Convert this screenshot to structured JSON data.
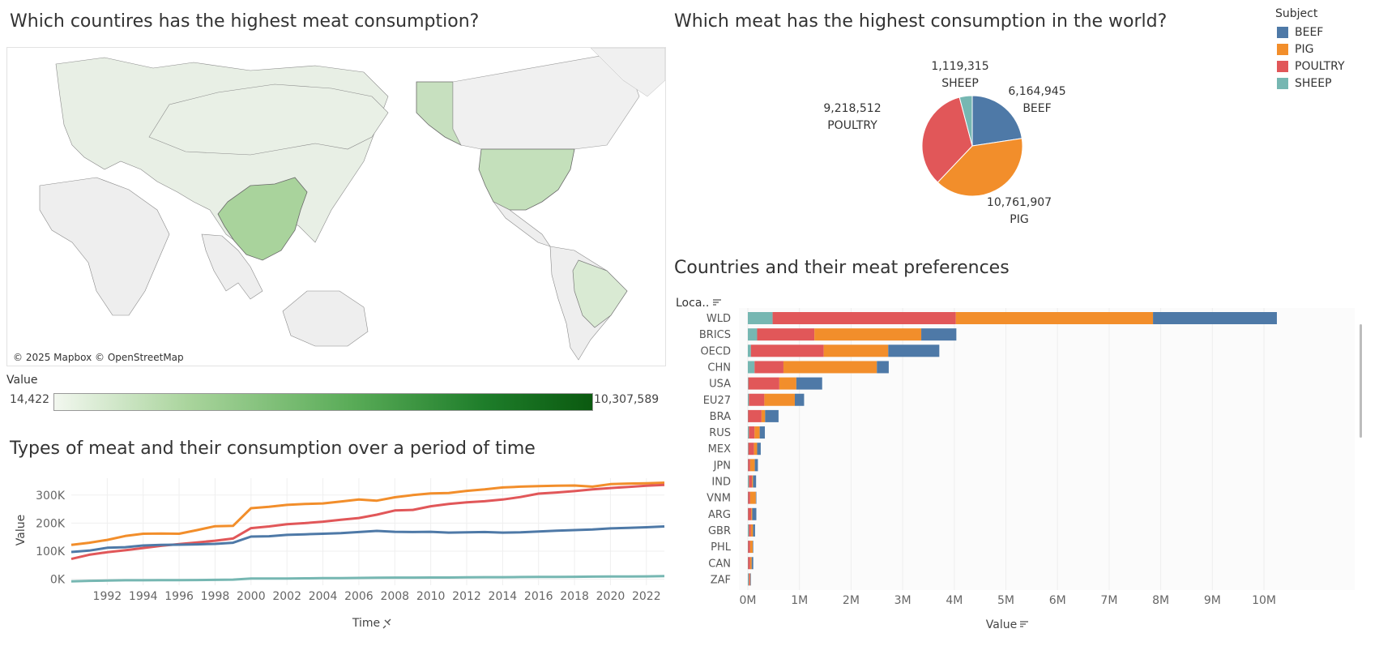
{
  "map": {
    "title": "Which countires has the highest meat consumption?",
    "attribution": "© 2025 Mapbox © OpenStreetMap",
    "value_label": "Value",
    "value_min": "14,422",
    "value_max": "10,307,589"
  },
  "legend": {
    "title": "Subject",
    "items": [
      {
        "label": "BEEF",
        "color": "#4e79a7"
      },
      {
        "label": "PIG",
        "color": "#f28e2b"
      },
      {
        "label": "POULTRY",
        "color": "#e15759"
      },
      {
        "label": "SHEEP",
        "color": "#76b7b2"
      }
    ]
  },
  "chart_data": [
    {
      "type": "pie",
      "title": "Which meat has the highest consumption in the world?",
      "slices": [
        {
          "label": "BEEF",
          "value": 6164945,
          "display": "6,164,945",
          "color": "#4e79a7"
        },
        {
          "label": "PIG",
          "value": 10761907,
          "display": "10,761,907",
          "color": "#f28e2b"
        },
        {
          "label": "POULTRY",
          "value": 9218512,
          "display": "9,218,512",
          "color": "#e15759"
        },
        {
          "label": "SHEEP",
          "value": 1119315,
          "display": "1,119,315",
          "color": "#76b7b2"
        }
      ]
    },
    {
      "type": "bar",
      "orientation": "horizontal",
      "stacked": true,
      "title": "Countries and their meat preferences",
      "row_header": "Loca..",
      "xlabel": "Value",
      "xlim": [
        0,
        10800000
      ],
      "xticks": [
        {
          "v": 0,
          "label": "0M"
        },
        {
          "v": 1000000,
          "label": "1M"
        },
        {
          "v": 2000000,
          "label": "2M"
        },
        {
          "v": 3000000,
          "label": "3M"
        },
        {
          "v": 4000000,
          "label": "4M"
        },
        {
          "v": 5000000,
          "label": "5M"
        },
        {
          "v": 6000000,
          "label": "6M"
        },
        {
          "v": 7000000,
          "label": "7M"
        },
        {
          "v": 8000000,
          "label": "8M"
        },
        {
          "v": 9000000,
          "label": "9M"
        },
        {
          "v": 10000000,
          "label": "10M"
        }
      ],
      "categories": [
        "WLD",
        "BRICS",
        "OECD",
        "CHN",
        "USA",
        "EU27",
        "BRA",
        "RUS",
        "MEX",
        "JPN",
        "IND",
        "VNM",
        "ARG",
        "GBR",
        "PHL",
        "CAN",
        "ZAF"
      ],
      "series": [
        {
          "name": "SHEEP",
          "color": "#76b7b2",
          "values": [
            480000,
            180000,
            60000,
            130000,
            10000,
            20000,
            5000,
            20000,
            10000,
            5000,
            20000,
            5000,
            5000,
            20000,
            5000,
            5000,
            20000
          ]
        },
        {
          "name": "POULTRY",
          "color": "#e15759",
          "values": [
            3550000,
            1110000,
            1410000,
            560000,
            600000,
            300000,
            260000,
            110000,
            110000,
            40000,
            60000,
            40000,
            60000,
            40000,
            40000,
            40000,
            20000
          ]
        },
        {
          "name": "PIG",
          "color": "#f28e2b",
          "values": [
            3820000,
            2070000,
            1250000,
            1810000,
            330000,
            590000,
            70000,
            100000,
            60000,
            90000,
            20000,
            110000,
            20000,
            40000,
            50000,
            30000,
            10000
          ]
        },
        {
          "name": "BEEF",
          "color": "#4e79a7",
          "values": [
            2400000,
            680000,
            990000,
            230000,
            500000,
            180000,
            260000,
            100000,
            70000,
            60000,
            60000,
            10000,
            80000,
            40000,
            10000,
            30000,
            10000
          ]
        }
      ]
    },
    {
      "type": "line",
      "title": "Types of meat and their consumption over a period of time",
      "xlabel": "Time",
      "ylabel": "Value",
      "ylim": [
        -10000,
        360000
      ],
      "xlim": [
        1990,
        2023
      ],
      "yticks": [
        {
          "v": 0,
          "label": "0K"
        },
        {
          "v": 100000,
          "label": "100K"
        },
        {
          "v": 200000,
          "label": "200K"
        },
        {
          "v": 300000,
          "label": "300K"
        }
      ],
      "xticks": [
        1992,
        1994,
        1996,
        1998,
        2000,
        2002,
        2004,
        2006,
        2008,
        2010,
        2012,
        2014,
        2016,
        2018,
        2020,
        2022
      ],
      "x": [
        1990,
        1991,
        1992,
        1993,
        1994,
        1995,
        1996,
        1997,
        1998,
        1999,
        2000,
        2001,
        2002,
        2003,
        2004,
        2005,
        2006,
        2007,
        2008,
        2009,
        2010,
        2011,
        2012,
        2013,
        2014,
        2015,
        2016,
        2017,
        2018,
        2019,
        2020,
        2021,
        2022,
        2023
      ],
      "series": [
        {
          "name": "PIG",
          "color": "#f28e2b",
          "values": [
            122000,
            130000,
            140000,
            154000,
            162000,
            163000,
            162000,
            175000,
            189000,
            190000,
            253000,
            258000,
            265000,
            268000,
            270000,
            277000,
            284000,
            280000,
            292000,
            300000,
            306000,
            307000,
            315000,
            320000,
            327000,
            330000,
            332000,
            333000,
            334000,
            330000,
            339000,
            341000,
            342000,
            344000
          ]
        },
        {
          "name": "POULTRY",
          "color": "#e15759",
          "values": [
            72000,
            87000,
            96000,
            103000,
            111000,
            119000,
            125000,
            131000,
            137000,
            145000,
            182000,
            188000,
            196000,
            200000,
            205000,
            212000,
            218000,
            230000,
            245000,
            247000,
            260000,
            268000,
            274000,
            278000,
            284000,
            293000,
            305000,
            309000,
            314000,
            320000,
            325000,
            329000,
            333000,
            336000
          ]
        },
        {
          "name": "BEEF",
          "color": "#4e79a7",
          "values": [
            97000,
            102000,
            112000,
            114000,
            120000,
            122000,
            123000,
            124000,
            126000,
            130000,
            152000,
            153000,
            158000,
            160000,
            162000,
            164000,
            168000,
            172000,
            169000,
            168000,
            169000,
            166000,
            167000,
            168000,
            166000,
            167000,
            170000,
            173000,
            175000,
            177000,
            181000,
            183000,
            185000,
            188000
          ]
        },
        {
          "name": "SHEEP",
          "color": "#76b7b2",
          "values": [
            -8000,
            -6000,
            -5000,
            -4000,
            -4000,
            -3500,
            -3500,
            -3000,
            -2500,
            -1500,
            2000,
            2500,
            2500,
            3000,
            3500,
            4000,
            4500,
            5000,
            5500,
            5500,
            6000,
            6000,
            6500,
            7000,
            7000,
            7500,
            8000,
            8000,
            8500,
            9000,
            9500,
            9500,
            10000,
            11000
          ]
        }
      ]
    }
  ]
}
